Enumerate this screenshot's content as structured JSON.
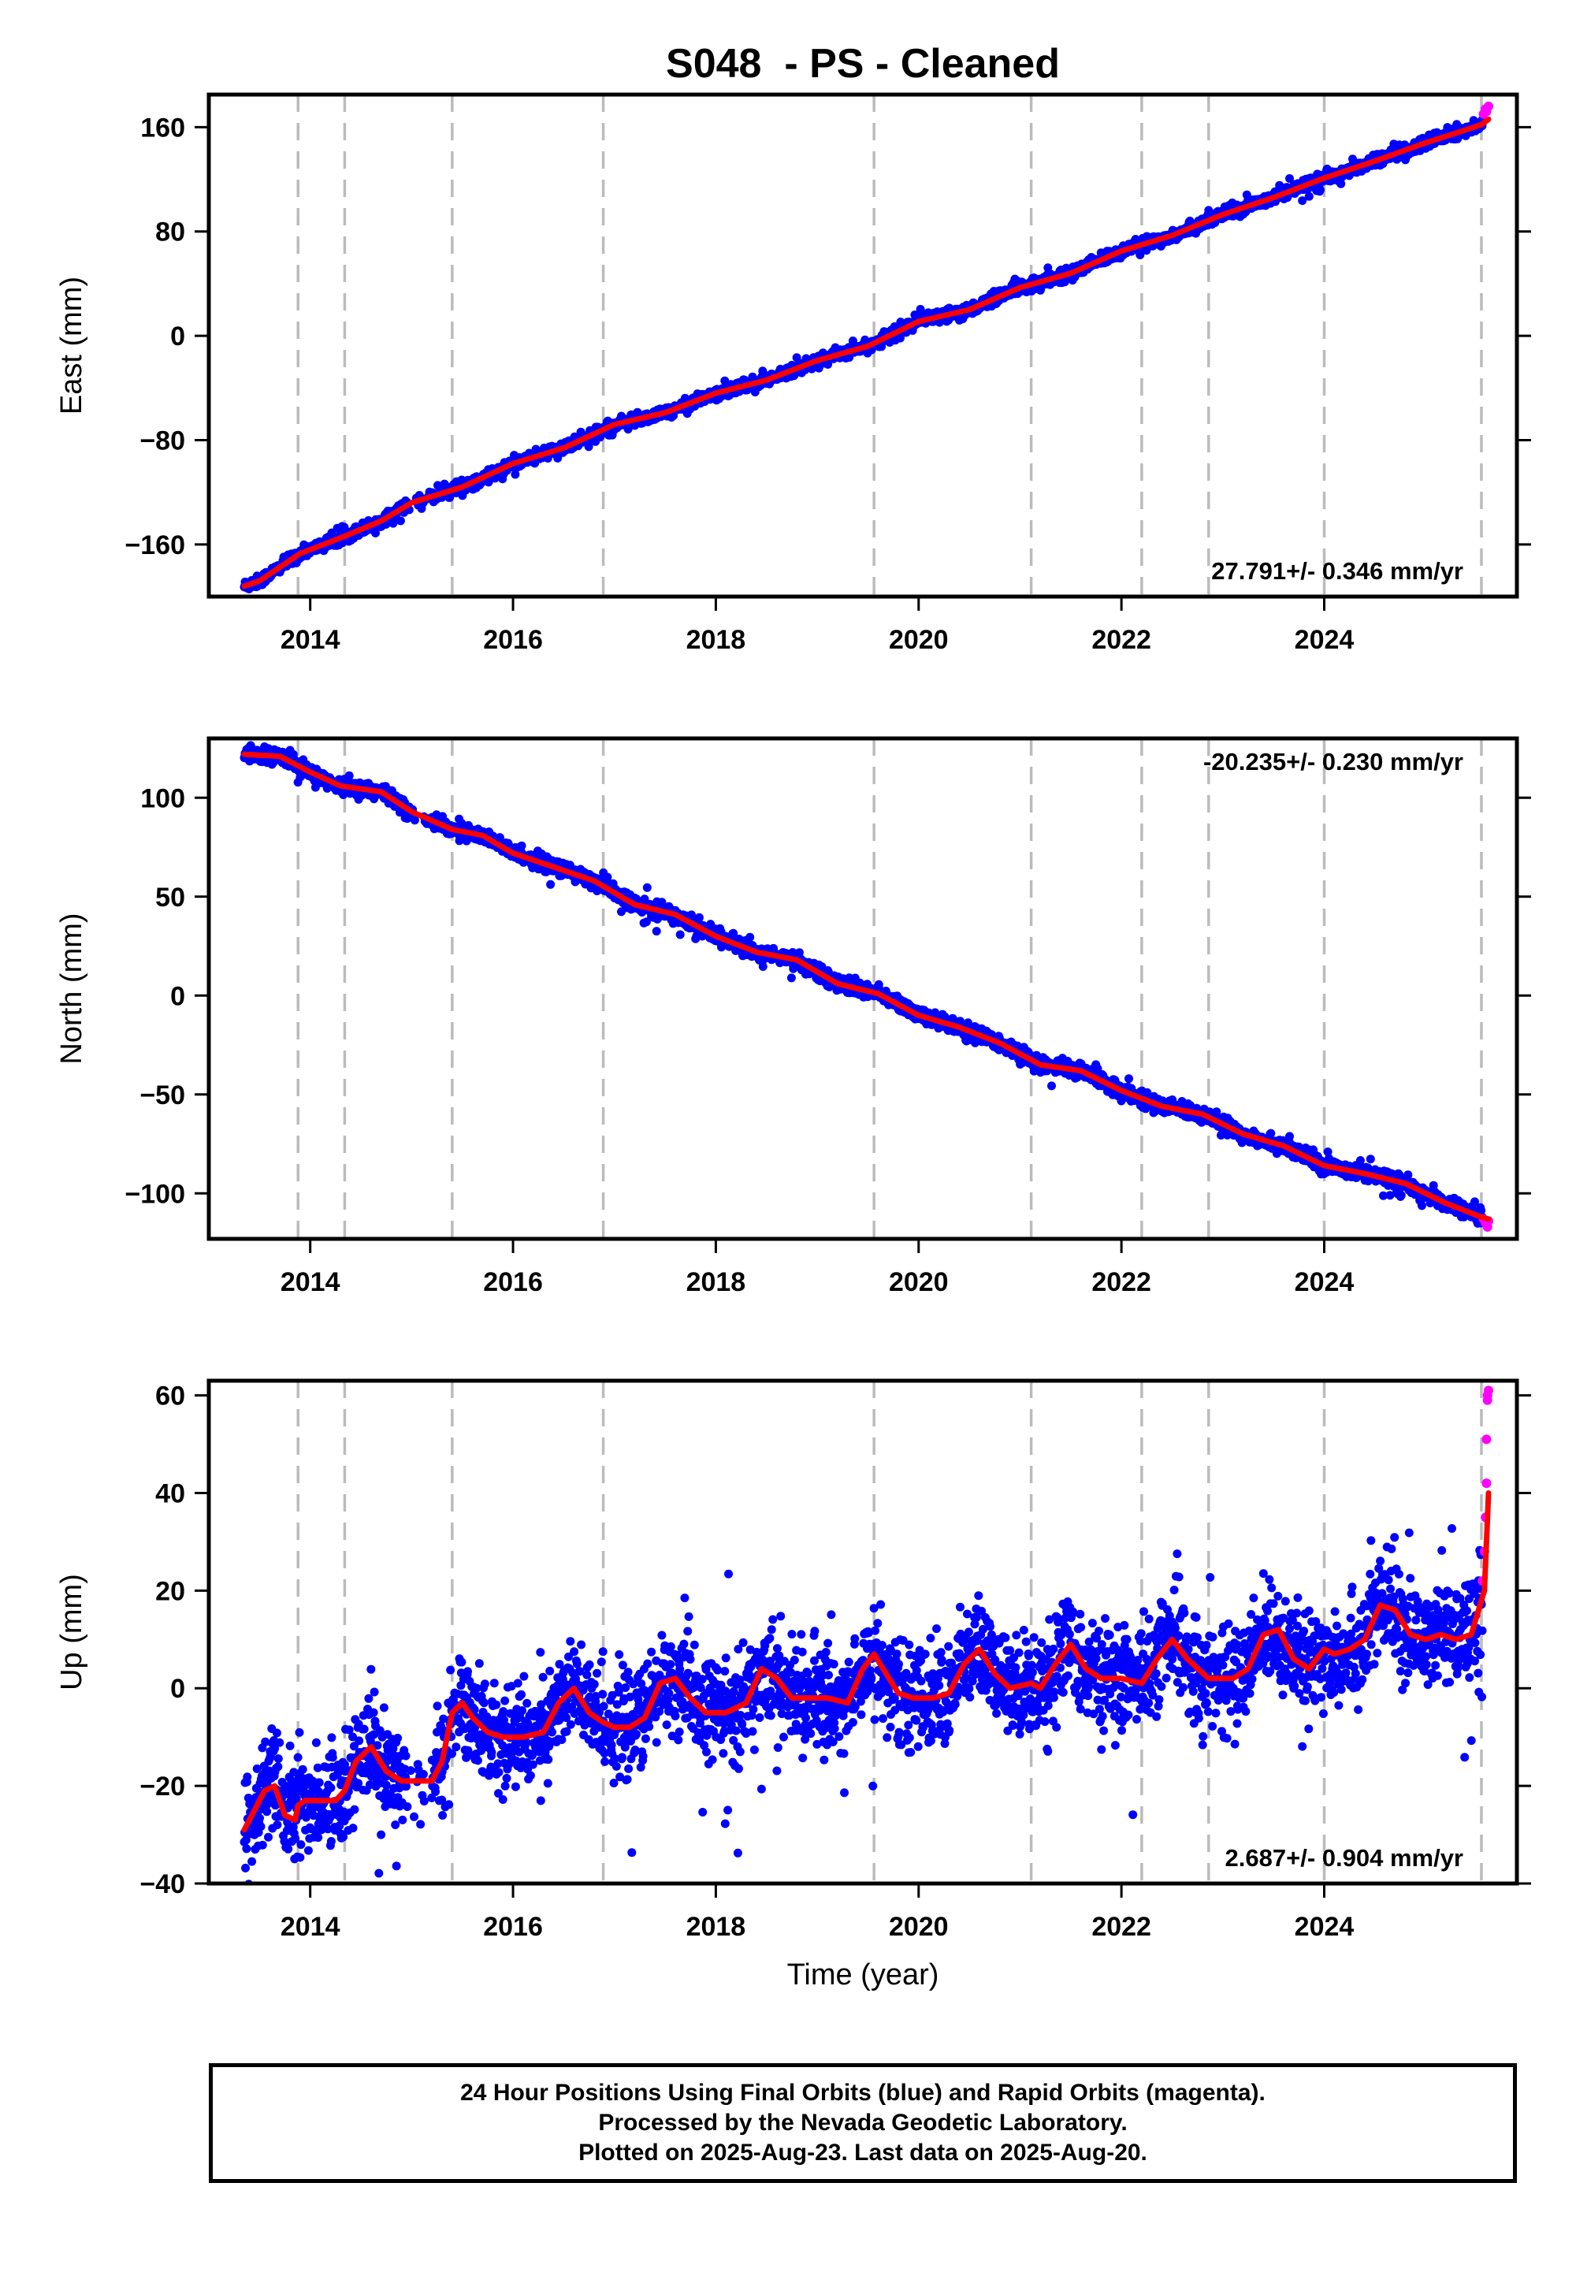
{
  "chart_data": {
    "type": "scatter",
    "title": "S048  - PS - Cleaned",
    "xlabel": "Time (year)",
    "xlim": [
      2013.0,
      2025.9
    ],
    "x_ticks": [
      2014,
      2016,
      2018,
      2020,
      2022,
      2024
    ],
    "x_tick_labels": [
      "2014",
      "2016",
      "2018",
      "2020",
      "2022",
      "2024"
    ],
    "vertical_dashed_lines": [
      2013.88,
      2014.34,
      2015.4,
      2016.89,
      2019.56,
      2021.11,
      2022.2,
      2022.86,
      2024.0,
      2025.55
    ],
    "colors": {
      "final_orbits": "#0000ff",
      "rapid_orbits": "#ff00ff",
      "model": "#ff0000",
      "breaks": "#bbbbbb"
    },
    "panels": [
      {
        "ylabel": "East (mm)",
        "ylim": [
          -200,
          185
        ],
        "y_ticks": [
          -160,
          -80,
          0,
          80,
          160
        ],
        "y_tick_labels": [
          "−160",
          "−80",
          "0",
          "80",
          "160"
        ],
        "rate_text": "27.791+/- 0.346 mm/yr",
        "rate_position": "bottom-right",
        "data_start": 2013.35,
        "data_end": 2025.62,
        "rapid_start": 2025.56,
        "scatter_noise": 2.2,
        "model": {
          "x": [
            2013.35,
            2013.5,
            2013.9,
            2014.3,
            2014.7,
            2015.0,
            2015.5,
            2016.0,
            2016.5,
            2017.0,
            2017.5,
            2018.0,
            2018.5,
            2019.0,
            2019.5,
            2020.0,
            2020.5,
            2021.0,
            2021.5,
            2022.0,
            2022.5,
            2023.0,
            2023.5,
            2024.0,
            2024.5,
            2025.0,
            2025.4,
            2025.55,
            2025.62
          ],
          "y": [
            -192,
            -188,
            -167,
            -155,
            -142,
            -128,
            -116,
            -98,
            -86,
            -68,
            -59,
            -44,
            -34,
            -19,
            -8,
            11,
            20,
            37,
            48,
            65,
            77,
            93,
            106,
            121,
            134,
            148,
            158,
            162,
            166
          ]
        },
        "rapid_points": [
          {
            "x": 2025.57,
            "y": 170
          },
          {
            "x": 2025.59,
            "y": 174
          },
          {
            "x": 2025.6,
            "y": 172
          },
          {
            "x": 2025.62,
            "y": 176
          }
        ]
      },
      {
        "ylabel": "North (mm)",
        "ylim": [
          -123,
          130
        ],
        "y_ticks": [
          -100,
          -50,
          0,
          50,
          100
        ],
        "y_tick_labels": [
          "−100",
          "−50",
          "0",
          "50",
          "100"
        ],
        "rate_text": "-20.235+/- 0.230 mm/yr",
        "rate_position": "top-right",
        "data_start": 2013.35,
        "data_end": 2025.62,
        "rapid_start": 2025.56,
        "scatter_noise": 1.8,
        "model": {
          "x": [
            2013.35,
            2013.7,
            2014.0,
            2014.3,
            2014.7,
            2015.0,
            2015.4,
            2015.7,
            2016.0,
            2016.4,
            2016.8,
            2017.2,
            2017.6,
            2018.0,
            2018.4,
            2018.8,
            2019.2,
            2019.6,
            2020.0,
            2020.4,
            2020.8,
            2021.2,
            2021.6,
            2022.0,
            2022.4,
            2022.8,
            2023.2,
            2023.6,
            2024.0,
            2024.4,
            2024.8,
            2025.2,
            2025.55,
            2025.62
          ],
          "y": [
            122,
            121,
            113,
            106,
            103,
            93,
            84,
            81,
            72,
            65,
            58,
            46,
            41,
            30,
            22,
            18,
            6,
            1,
            -10,
            -16,
            -24,
            -35,
            -38,
            -48,
            -56,
            -60,
            -70,
            -76,
            -86,
            -90,
            -95,
            -105,
            -112,
            -113
          ]
        },
        "rapid_points": [
          {
            "x": 2025.57,
            "y": -113
          },
          {
            "x": 2025.59,
            "y": -115
          },
          {
            "x": 2025.61,
            "y": -117
          },
          {
            "x": 2025.62,
            "y": -114
          }
        ]
      },
      {
        "ylabel": "Up (mm)",
        "ylim": [
          -40,
          63
        ],
        "y_ticks": [
          -40,
          -20,
          0,
          20,
          40,
          60
        ],
        "y_tick_labels": [
          "−40",
          "−20",
          "0",
          "20",
          "40",
          "60"
        ],
        "rate_text": "2.687+/- 0.904 mm/yr",
        "rate_position": "bottom-right",
        "data_start": 2013.35,
        "data_end": 2025.62,
        "rapid_start": 2025.56,
        "scatter_noise": 5.0,
        "model": {
          "x": [
            2013.35,
            2013.45,
            2013.55,
            2013.65,
            2013.75,
            2013.85,
            2013.88,
            2013.95,
            2014.1,
            2014.25,
            2014.34,
            2014.45,
            2014.6,
            2014.75,
            2014.9,
            2015.05,
            2015.2,
            2015.3,
            2015.4,
            2015.5,
            2015.6,
            2015.75,
            2015.9,
            2016.1,
            2016.3,
            2016.45,
            2016.6,
            2016.75,
            2016.89,
            2017.0,
            2017.15,
            2017.3,
            2017.45,
            2017.6,
            2017.75,
            2017.9,
            2018.1,
            2018.3,
            2018.45,
            2018.6,
            2018.75,
            2018.9,
            2019.1,
            2019.3,
            2019.45,
            2019.56,
            2019.65,
            2019.8,
            2019.95,
            2020.15,
            2020.3,
            2020.45,
            2020.6,
            2020.75,
            2020.9,
            2021.11,
            2021.2,
            2021.35,
            2021.5,
            2021.65,
            2021.8,
            2022.0,
            2022.2,
            2022.35,
            2022.5,
            2022.65,
            2022.86,
            2022.95,
            2023.1,
            2023.25,
            2023.4,
            2023.55,
            2023.7,
            2023.85,
            2024.0,
            2024.1,
            2024.25,
            2024.4,
            2024.55,
            2024.7,
            2024.85,
            2025.0,
            2025.15,
            2025.3,
            2025.45,
            2025.55,
            2025.58,
            2025.62
          ],
          "y": [
            -29,
            -25,
            -21,
            -20,
            -26,
            -27,
            -24,
            -23,
            -23,
            -23,
            -21,
            -15,
            -12,
            -17,
            -19,
            -19,
            -19,
            -15,
            -5,
            -3,
            -6,
            -9,
            -10,
            -10,
            -9,
            -3,
            0,
            -5,
            -7,
            -8,
            -8,
            -6,
            1,
            2,
            -2,
            -5,
            -5,
            -3,
            4,
            2,
            -2,
            -2,
            -2,
            -3,
            4,
            7,
            4,
            -1,
            -2,
            -2,
            -1,
            5,
            8,
            3,
            0,
            1,
            0,
            5,
            9,
            4,
            2,
            2,
            1,
            6,
            10,
            6,
            2,
            2,
            2,
            4,
            11,
            12,
            6,
            4,
            8,
            7,
            8,
            10,
            17,
            16,
            11,
            10,
            11,
            10,
            11,
            18,
            20,
            40
          ]
        },
        "rapid_points": [
          {
            "x": 2025.56,
            "y": 22
          },
          {
            "x": 2025.58,
            "y": 28
          },
          {
            "x": 2025.59,
            "y": 35
          },
          {
            "x": 2025.6,
            "y": 42
          },
          {
            "x": 2025.6,
            "y": 51
          },
          {
            "x": 2025.61,
            "y": 59
          },
          {
            "x": 2025.61,
            "y": 60
          },
          {
            "x": 2025.62,
            "y": 61
          }
        ]
      }
    ]
  },
  "footer": {
    "line1": "24 Hour Positions Using Final Orbits (blue) and Rapid Orbits (magenta).",
    "line2": "Processed by the Nevada Geodetic Laboratory.",
    "line3": "Plotted on 2025-Aug-23. Last data on 2025-Aug-20."
  }
}
